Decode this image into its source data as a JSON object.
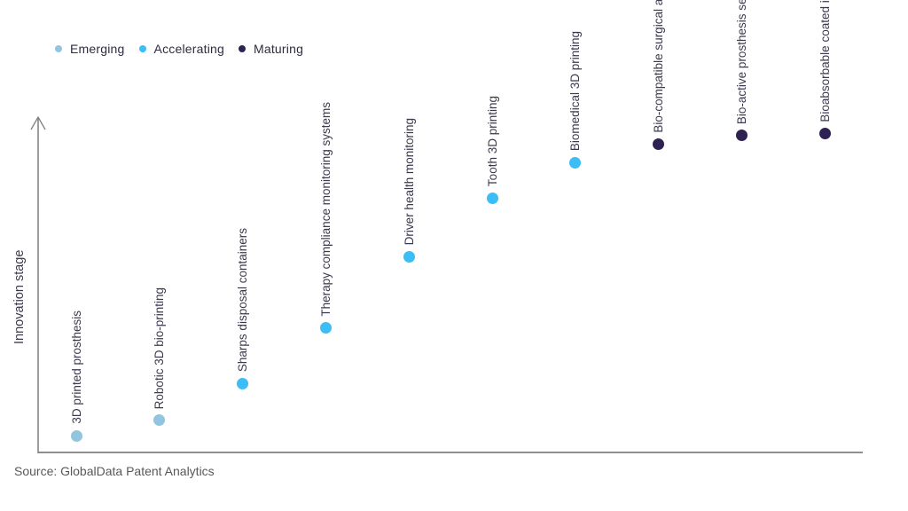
{
  "source": "Source: GlobalData Patent Analytics",
  "colors": {
    "emerging": "#92c5de",
    "accelerating": "#3bbdf5",
    "maturing": "#2e2250",
    "axis": "#7f7f7f",
    "label_text": "#3a3a4e",
    "source_text": "#595959"
  },
  "chart_data": {
    "type": "scatter",
    "title": "",
    "xlabel": "",
    "ylabel": "Innovation stage",
    "grid": false,
    "legend_position": "top-left",
    "value_axis_range": [
      0,
      100
    ],
    "legend": [
      {
        "label": "Emerging",
        "color": "#92c5de"
      },
      {
        "label": "Accelerating",
        "color": "#3bbdf5"
      },
      {
        "label": "Maturing",
        "color": "#2e2250"
      }
    ],
    "points": [
      {
        "label": "3D printed prosthesis",
        "stage": "Emerging",
        "value": 5
      },
      {
        "label": "Robotic 3D bio-printing",
        "stage": "Emerging",
        "value": 9.5
      },
      {
        "label": "Sharps disposal containers",
        "stage": "Accelerating",
        "value": 20.5
      },
      {
        "label": "Therapy compliance monitoring systems",
        "stage": "Accelerating",
        "value": 37
      },
      {
        "label": "Driver health monitoring",
        "stage": "Accelerating",
        "value": 58
      },
      {
        "label": "Tooth 3D printing",
        "stage": "Accelerating",
        "value": 75.5
      },
      {
        "label": "Biomedical 3D printing",
        "stage": "Accelerating",
        "value": 86
      },
      {
        "label": "Bio-compatible surgical adjuncts",
        "stage": "Maturing",
        "value": 91.5
      },
      {
        "label": "Bio-active prosthesis sealing",
        "stage": "Maturing",
        "value": 94
      },
      {
        "label": "Bioabsorbable coated implants",
        "stage": "Maturing",
        "value": 94.5
      }
    ],
    "stage_colors": {
      "Emerging": "#92c5de",
      "Accelerating": "#3bbdf5",
      "Maturing": "#2e2250"
    }
  }
}
